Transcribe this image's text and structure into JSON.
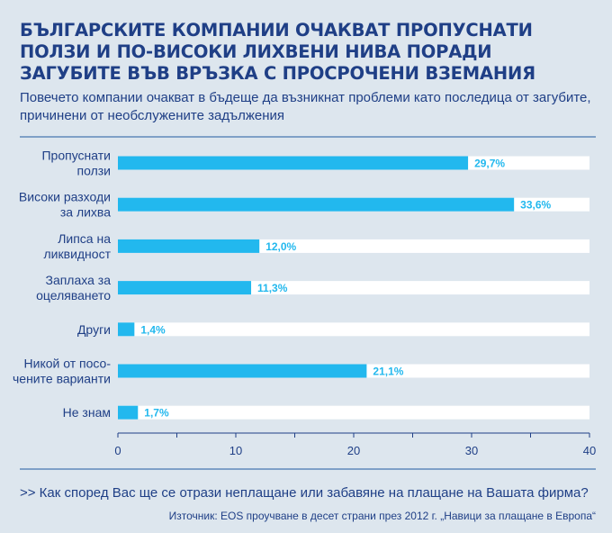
{
  "title": "БЪЛГАРСКИТЕ КОМПАНИИ ОЧАКВАТ ПРОПУСНАТИ ПОЛЗИ И ПО-ВИСОКИ ЛИХВЕНИ НИВА ПОРАДИ ЗАГУБИТЕ ВЪВ ВРЪЗКА С ПРОСРОЧЕНИ ВЗЕМАНИЯ",
  "subtitle": "Повечето компании очакват в бъдеще да възникнат проблеми като последица от загубите, причинени от необслужените задължения",
  "question": ">> Как според Вас ще се отрази неплащане или забавяне на плащане на Вашата фирма?",
  "source": "Източник: EOS проучване в десет страни през 2012 г. „Навици за плащане в Европа“",
  "colors": {
    "bar": "#22b8ee",
    "track": "#ffffff",
    "text": "#1f3f86",
    "value_label": "#22b8ee",
    "background": "#dde6ee"
  },
  "chart_data": {
    "type": "bar",
    "orientation": "horizontal",
    "categories": [
      [
        "Пропуснати",
        "ползи"
      ],
      [
        "Високи разходи",
        "за лихва"
      ],
      [
        "Липса на",
        "ликвидност"
      ],
      [
        "Заплаха за",
        "оцеляването"
      ],
      [
        "Други"
      ],
      [
        "Никой от посо-",
        "чените варианти"
      ],
      [
        "Не знам"
      ]
    ],
    "values": [
      29.7,
      33.6,
      12.0,
      11.3,
      1.4,
      21.1,
      1.7
    ],
    "value_labels": [
      "29,7%",
      "33,6%",
      "12,0%",
      "11,3%",
      "1,4%",
      "21,1%",
      "1,7%"
    ],
    "xlim": [
      0,
      40
    ],
    "x_ticks": [
      0,
      10,
      20,
      30,
      40
    ],
    "xlabel": "",
    "ylabel": ""
  }
}
